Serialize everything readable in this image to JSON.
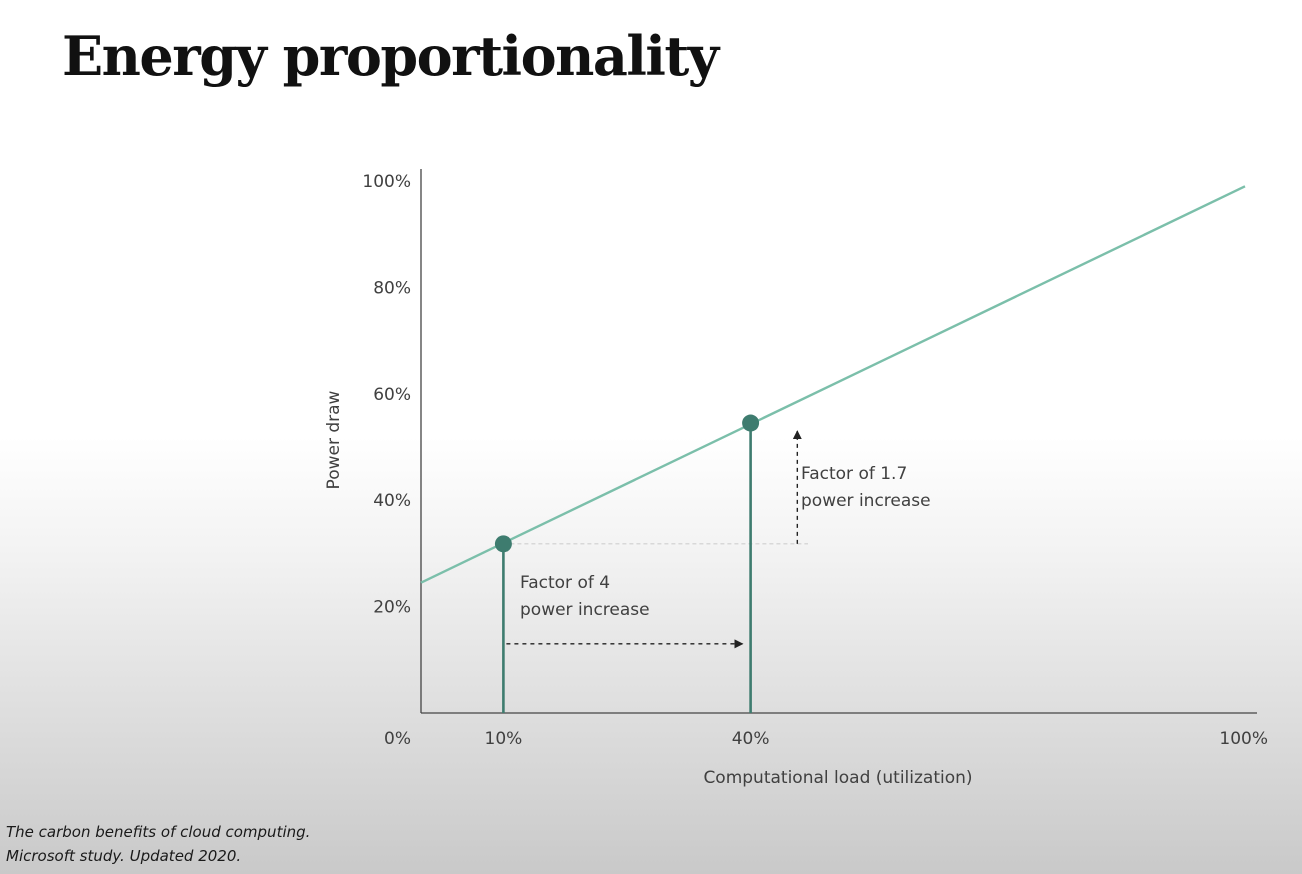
{
  "slide": {
    "title": "Energy proportionality",
    "citation_line1": "The carbon benefits of cloud computing.",
    "citation_line2": "Microsoft study. Updated 2020."
  },
  "colors": {
    "line": "#7bbfaa",
    "marker": "#3e7c6f",
    "axis": "#444444",
    "annotation": "#222222"
  },
  "chart_data": {
    "type": "line",
    "title": "",
    "xlabel": "Computational load (utilization)",
    "ylabel": "Power draw",
    "xlim": [
      0,
      100
    ],
    "ylim": [
      0,
      100
    ],
    "x_ticks": [
      0,
      10,
      40,
      100
    ],
    "x_tick_labels": [
      "0%",
      "10%",
      "40%",
      "100%"
    ],
    "y_ticks": [
      20,
      40,
      60,
      80,
      100
    ],
    "y_tick_labels": [
      "20%",
      "40%",
      "60%",
      "80%",
      "100%"
    ],
    "grid": false,
    "series": [
      {
        "x": [
          0,
          100
        ],
        "y": [
          24.5,
          99
        ]
      }
    ],
    "highlight_points": [
      {
        "x": 10,
        "y": 31.8
      },
      {
        "x": 40,
        "y": 54.5
      }
    ],
    "annotations": [
      {
        "id": "load",
        "line1": "Factor of 4",
        "line2": "power increase",
        "x_from": 10,
        "x_to": 40,
        "y": 13
      },
      {
        "id": "power",
        "line1": "Factor of 1.7",
        "line2": "power increase",
        "x": 43,
        "y_from": 31.8,
        "y_to": 53
      }
    ]
  }
}
